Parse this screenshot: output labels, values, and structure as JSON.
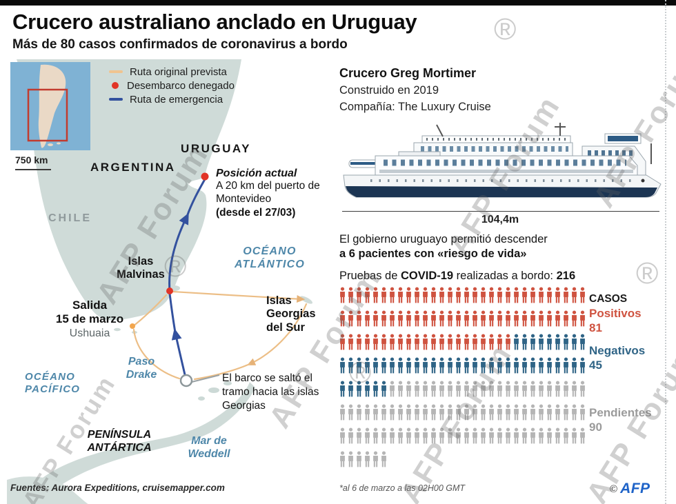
{
  "header": {
    "title": "Crucero australiano anclado en Uruguay",
    "subtitle": "Más de 80 casos confirmados de coronavirus a bordo"
  },
  "watermark": {
    "text": "AFP Forum"
  },
  "map": {
    "inset": {
      "scale": "750 km"
    },
    "legend": [
      {
        "label": "Ruta original prevista",
        "type": "line",
        "color": "#f0c490"
      },
      {
        "label": "Desembarco denegado",
        "type": "dot",
        "color": "#e13427"
      },
      {
        "label": "Ruta de emergencia",
        "type": "line",
        "color": "#33519e"
      }
    ],
    "labels": {
      "uruguay": "URUGUAY",
      "argentina": "ARGENTINA",
      "chile": "CHILE",
      "oceano_atlantico": "OCÉANO ATLÁNTICO",
      "oceano_pacifico": "OCÉANO PACÍFICO",
      "islas_malvinas": "Islas Malvinas",
      "islas_georgias": "Islas Georgias del Sur",
      "paso_drake": "Paso Drake",
      "mar_weddell": "Mar de Weddell",
      "peninsula": "PENÍNSULA ANTÁRTICA"
    },
    "salida": {
      "line1": "Salida",
      "line2": "15 de marzo",
      "city": "Ushuaia"
    },
    "posicion": {
      "title": "Posición actual",
      "body": "A 20 km del puerto de Montevideo",
      "date": "(desde el 27/03)"
    },
    "skip_note": "El barco se saltó el tramo hacia las islas Georgias"
  },
  "ship": {
    "name": "Crucero Greg Mortimer",
    "built": "Construido en 2019",
    "company": "Compañía: The Luxury Cruise",
    "length": "104,4m"
  },
  "stats": {
    "gov_line1": "El gobierno uruguayo permitió descender",
    "gov_line2": "a 6 pacientes con «riesgo de vida»",
    "tests_prefix": "Pruebas de ",
    "tests_bold1": "COVID-19",
    "tests_mid": " realizadas a bordo: ",
    "tests_total": "216"
  },
  "chart_data": {
    "type": "pictogram",
    "title": "Pruebas de COVID-19 realizadas a bordo",
    "total": 216,
    "icons_per_row": 30,
    "categories": [
      {
        "name": "Positivos",
        "value": 81,
        "color": "#cf5340"
      },
      {
        "name": "Negativos",
        "value": 45,
        "color": "#2f6486"
      },
      {
        "name": "Pendientes",
        "value": 90,
        "color": "#b5b5b5"
      }
    ],
    "labels": {
      "casos": "CASOS",
      "positivos": "Positivos",
      "positivos_value": "81",
      "negativos": "Negativos",
      "negativos_value": "45",
      "pendientes": "Pendientes",
      "pendientes_value": "90"
    }
  },
  "footer": {
    "sources": "Fuentes: Aurora Expeditions, cruisemapper.com",
    "footnote": "*al 6 de marzo a las 02H00 GMT",
    "agency": "AFP",
    "copyright": "©"
  }
}
